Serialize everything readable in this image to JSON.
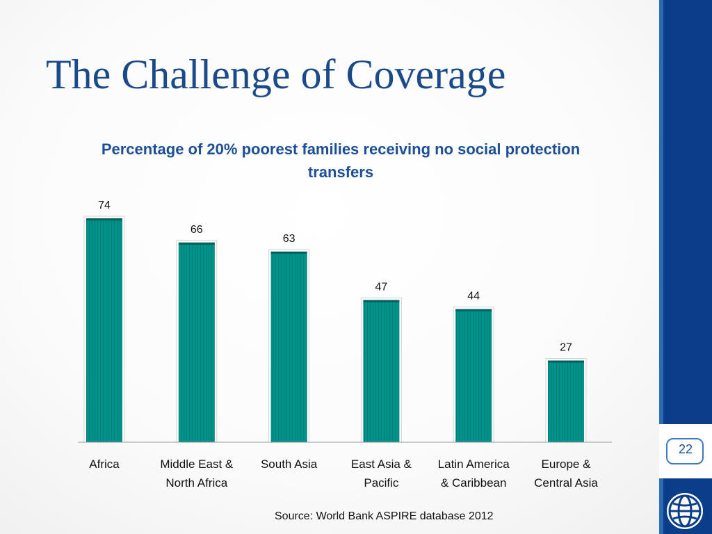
{
  "slide": {
    "title": "The Challenge of Coverage",
    "page_number": "22",
    "source": "Source: World Bank ASPIRE database 2012"
  },
  "colors": {
    "accent": "#1b4a8a",
    "bar": "#00918a",
    "sidebar": "#0b3d8a"
  },
  "icons": {
    "logo": "world-bank-globe-icon"
  },
  "chart_data": {
    "type": "bar",
    "title": "Percentage of 20% poorest families receiving no social protection transfers",
    "categories": [
      [
        "Africa"
      ],
      [
        "Middle East &",
        "North Africa"
      ],
      [
        "South Asia"
      ],
      [
        "East Asia &",
        "Pacific"
      ],
      [
        "Latin America",
        "& Caribbean"
      ],
      [
        "Europe &",
        "Central Asia"
      ]
    ],
    "values": [
      74,
      66,
      63,
      47,
      44,
      27
    ],
    "data_labels": [
      "74",
      "66",
      "63",
      "47",
      "44",
      "27"
    ],
    "xlabel": "",
    "ylabel": "",
    "ylim": [
      0,
      74
    ],
    "grid": false,
    "legend": "none"
  }
}
